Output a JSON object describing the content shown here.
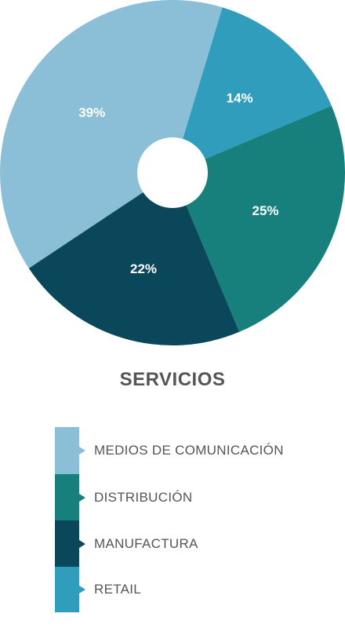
{
  "chart_data": {
    "type": "pie",
    "title": "SERVICIOS",
    "categories": [
      "MEDIOS DE COMUNICACIÓN",
      "DISTRIBUCIÓN",
      "MANUFACTURA",
      "RETAIL"
    ],
    "values": [
      39,
      25,
      22,
      14
    ],
    "value_labels": [
      "39%",
      "25%",
      "22%",
      "14%"
    ],
    "colors": [
      "#8bbfd7",
      "#17807d",
      "#0b475b",
      "#2f9dbb"
    ],
    "legend_position": "bottom"
  }
}
